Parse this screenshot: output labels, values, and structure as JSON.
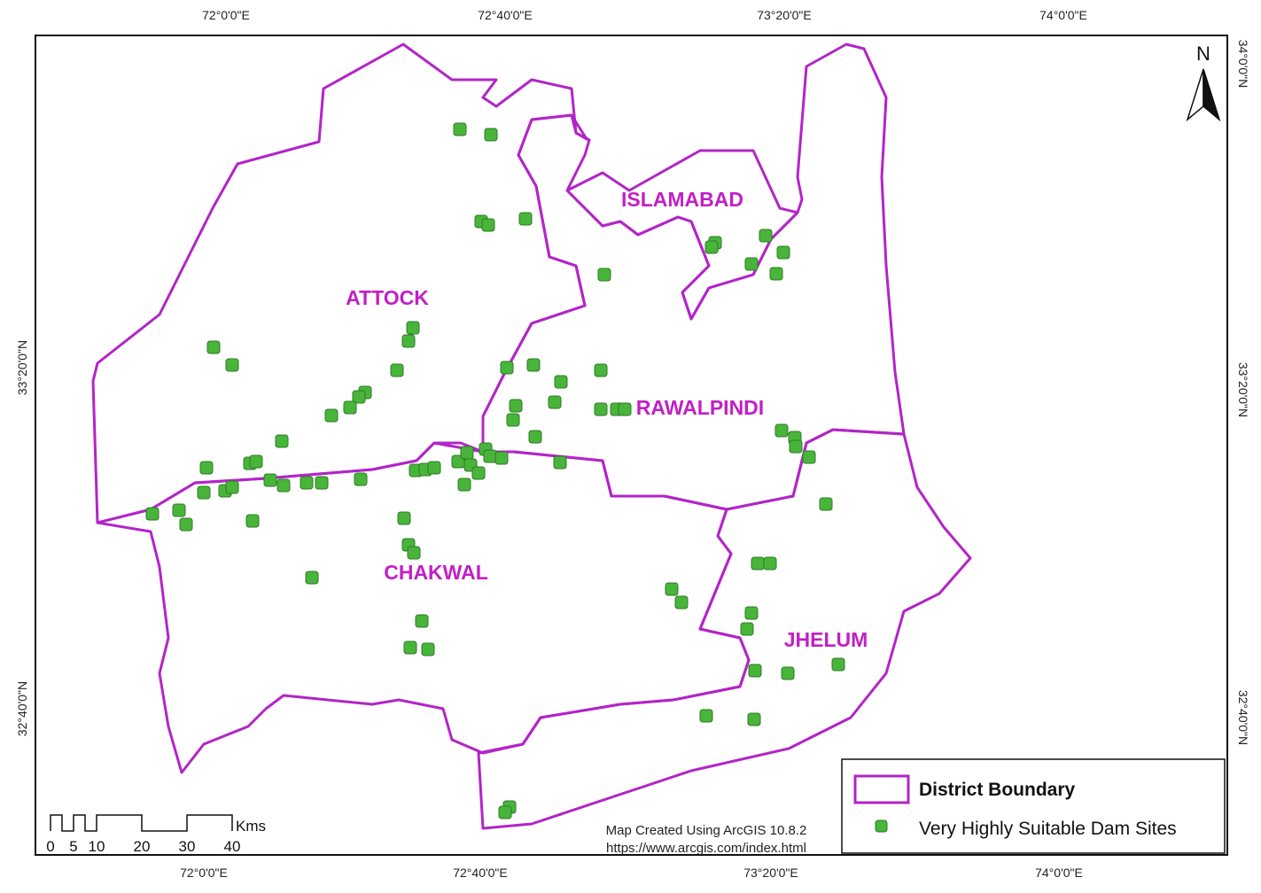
{
  "map": {
    "graticule": {
      "top": [
        "72°0'0\"E",
        "72°40'0\"E",
        "73°20'0\"E",
        "74°0'0\"E"
      ],
      "bottom": [
        "72°0'0\"E",
        "72°40'0\"E",
        "73°20'0\"E",
        "74°0'0\"E"
      ],
      "left": [
        "33°20'0\"N",
        "32°40'0\"N"
      ],
      "right": [
        "34°0'0\"N",
        "33°20'0\"N",
        "32°40'0\"N"
      ]
    },
    "districts": [
      "ATTOCK",
      "ISLAMABAD",
      "RAWALPINDI",
      "CHAKWAL",
      "JHELUM"
    ],
    "north_arrow": "N",
    "scale_bar": {
      "labels": [
        0,
        5,
        10,
        20,
        30,
        40
      ],
      "unit": "Kms"
    },
    "legend": [
      "District Boundary",
      "Very Highly Suitable Dam Sites"
    ],
    "credits": [
      "Map Created Using ArcGIS 10.8.2",
      "https://www.arcgis.com/index.html"
    ]
  }
}
